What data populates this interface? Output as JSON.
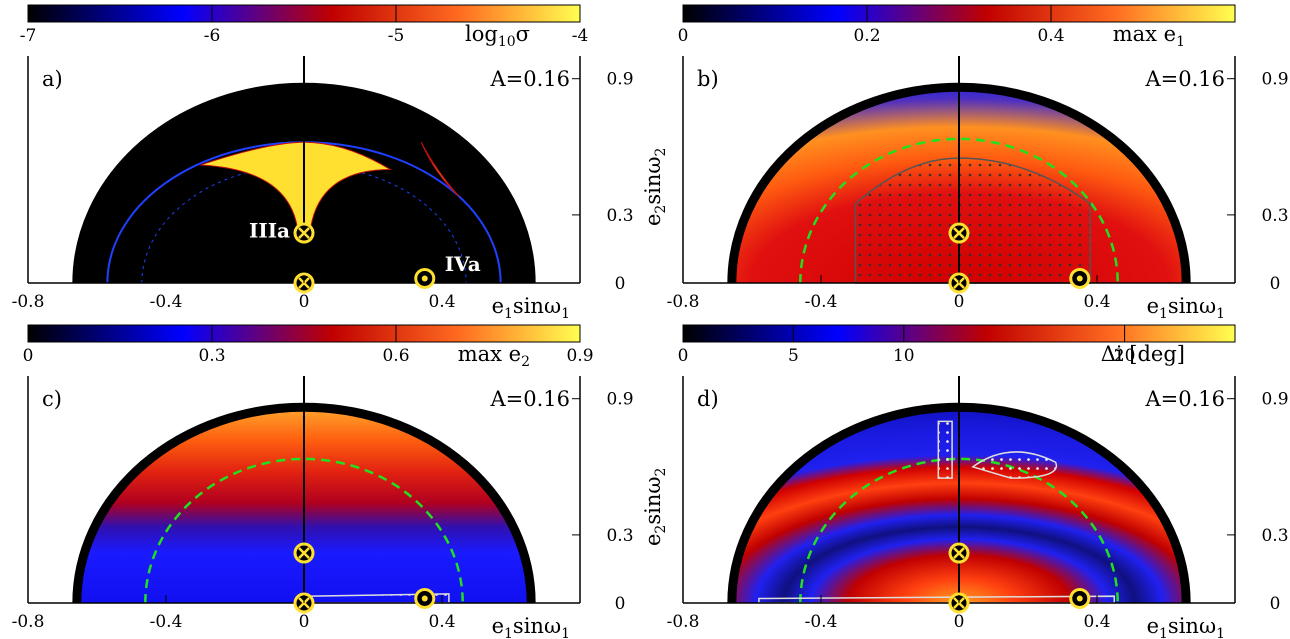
{
  "chart_data": [
    {
      "panel": "a)",
      "type": "heatmap",
      "annotation": "A=0.16",
      "colorbar": {
        "label_base": "log",
        "label_sub": "10",
        "label_var": "σ",
        "range": [
          -7,
          -4
        ],
        "ticks": [
          "-7",
          "-6",
          "-5",
          "-4"
        ],
        "colormap": [
          "#000000",
          "#0000ff",
          "#c00000",
          "#ff6020",
          "#ffff50"
        ]
      },
      "xlabel": {
        "base": "e",
        "sub": "1",
        "rest": "sinω",
        "sub2": "1"
      },
      "ylabel": {
        "base": "e",
        "sub": "2",
        "rest": "sinω",
        "sub2": "2"
      },
      "xticks": [
        "-0.8",
        "-0.4",
        "0",
        "0.4"
      ],
      "yticks": [
        "0",
        "0.3",
        "0.9"
      ],
      "xlim": [
        -0.8,
        0.8
      ],
      "ylim": [
        0,
        1.0
      ],
      "regions": [
        "IIIa",
        "IVa"
      ],
      "markers": [
        {
          "x": 0.0,
          "y": 0.0,
          "symbol": "cross"
        },
        {
          "x": 0.0,
          "y": 0.22,
          "symbol": "cross"
        },
        {
          "x": 0.35,
          "y": 0.02,
          "symbol": "dot"
        }
      ],
      "domain_boundary": {
        "x_min": -0.67,
        "x_max": 0.67,
        "y_max": 0.88
      }
    },
    {
      "panel": "b)",
      "type": "heatmap",
      "annotation": "A=0.16",
      "colorbar": {
        "label_base": "max e",
        "label_sub": "1",
        "range": [
          0,
          0.6
        ],
        "ticks": [
          "0",
          "0.2",
          "0.4"
        ],
        "colormap": [
          "#000000",
          "#0000ff",
          "#c00000",
          "#ff6020",
          "#ffff50"
        ]
      },
      "xlabel": {
        "base": "e",
        "sub": "1",
        "rest": "sinω",
        "sub2": "1"
      },
      "ylabel": {
        "base": "e",
        "sub": "2",
        "rest": "sinω",
        "sub2": "2"
      },
      "xticks": [
        "-0.8",
        "-0.4",
        "0",
        "0.4"
      ],
      "yticks": [
        "0",
        "0.3",
        "0.9"
      ],
      "xlim": [
        -0.8,
        0.8
      ],
      "ylim": [
        0,
        1.0
      ],
      "markers": [
        {
          "x": 0.0,
          "y": 0.0,
          "symbol": "cross"
        },
        {
          "x": 0.0,
          "y": 0.22,
          "symbol": "cross"
        },
        {
          "x": 0.35,
          "y": 0.02,
          "symbol": "dot"
        }
      ],
      "dashed_curve_radius": 0.46
    },
    {
      "panel": "c)",
      "type": "heatmap",
      "annotation": "A=0.16",
      "colorbar": {
        "label_base": "max e",
        "label_sub": "2",
        "range": [
          0,
          0.9
        ],
        "ticks": [
          "0",
          "0.3",
          "0.6",
          "0.9"
        ],
        "colormap": [
          "#000000",
          "#0000ff",
          "#c00000",
          "#ff6020",
          "#ffff50"
        ]
      },
      "xlabel": {
        "base": "e",
        "sub": "1",
        "rest": "sinω",
        "sub2": "1"
      },
      "ylabel": {
        "base": "e",
        "sub": "2",
        "rest": "sinω",
        "sub2": "2"
      },
      "xticks": [
        "-0.8",
        "-0.4",
        "0",
        "0.4"
      ],
      "yticks": [
        "0",
        "0.3",
        "0.9"
      ],
      "xlim": [
        -0.8,
        0.8
      ],
      "ylim": [
        0,
        1.0
      ],
      "markers": [
        {
          "x": 0.0,
          "y": 0.0,
          "symbol": "cross"
        },
        {
          "x": 0.0,
          "y": 0.22,
          "symbol": "cross"
        },
        {
          "x": 0.35,
          "y": 0.02,
          "symbol": "dot"
        }
      ],
      "dashed_curve_radius": 0.46
    },
    {
      "panel": "d)",
      "type": "heatmap",
      "annotation": "A=0.16",
      "colorbar": {
        "label_base": "Δi [deg]",
        "label_sub": "",
        "range": [
          0,
          25
        ],
        "ticks": [
          "0",
          "5",
          "10",
          "20"
        ],
        "colormap": [
          "#000000",
          "#0000ff",
          "#c00000",
          "#ff6020",
          "#ffff50"
        ]
      },
      "xlabel": {
        "base": "e",
        "sub": "1",
        "rest": "sinω",
        "sub2": "1"
      },
      "ylabel": {
        "base": "e",
        "sub": "2",
        "rest": "sinω",
        "sub2": "2"
      },
      "xticks": [
        "-0.8",
        "-0.4",
        "0",
        "0.4"
      ],
      "yticks": [
        "0",
        "0.3",
        "0.9"
      ],
      "xlim": [
        -0.8,
        0.8
      ],
      "ylim": [
        0,
        1.0
      ],
      "markers": [
        {
          "x": 0.0,
          "y": 0.0,
          "symbol": "cross"
        },
        {
          "x": 0.0,
          "y": 0.22,
          "symbol": "cross"
        },
        {
          "x": 0.35,
          "y": 0.02,
          "symbol": "dot"
        }
      ],
      "dashed_curve_radius": 0.46
    }
  ]
}
